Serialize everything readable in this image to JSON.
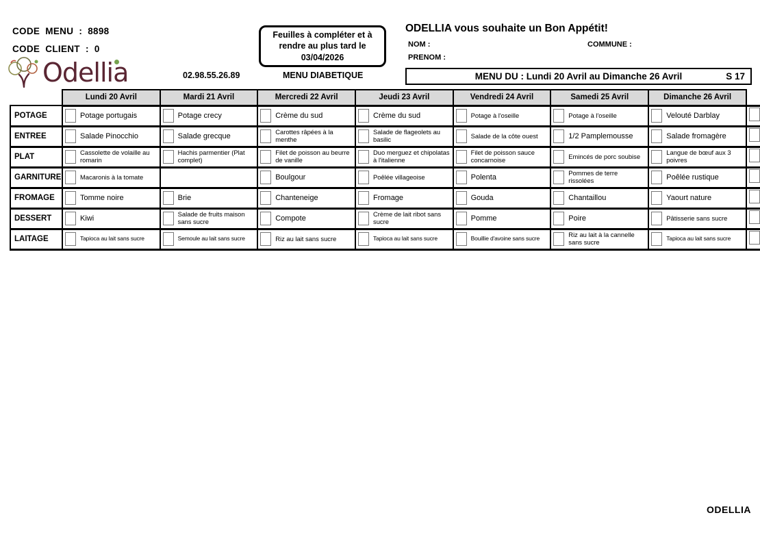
{
  "header": {
    "code_menu": "CODE  MENU  :  8898",
    "code_client": "CODE  CLIENT  :  0",
    "logo_text": "Odellia",
    "phone": "02.98.55.26.89",
    "menu_type": "MENU DIABETIQUE",
    "notice": [
      "Feuilles à compléter et à",
      "rendre au plus tard le",
      "03/04/2026"
    ],
    "greeting": "ODELLIA vous souhaite un Bon Appétit!",
    "nom_label": "NOM :",
    "commune_label": "COMMUNE :",
    "prenom_label": "PRENOM :",
    "week_banner": "MENU DU : Lundi 20 Avril au Dimanche 26 Avril",
    "week_number": "S 17"
  },
  "table": {
    "day_headers": [
      "Lundi 20 Avril",
      "Mardi 21 Avril",
      "Mercredi 22 Avril",
      "Jeudi 23 Avril",
      "Vendredi 24 Avril",
      "Samedi 25 Avril",
      "Dimanche 26 Avril"
    ],
    "rows": [
      {
        "category": "POTAGE",
        "items": [
          "Potage portugais",
          "Potage crecy",
          "Crème du sud",
          "Crème du sud",
          "Potage à l'oseille",
          "Potage à l'oseille",
          "Velouté Darblay"
        ]
      },
      {
        "category": "ENTREE",
        "items": [
          "Salade Pinocchio",
          "Salade grecque",
          "Carottes râpées à la\nmenthe",
          "Salade de flageolets au\nbasilic",
          "Salade de la côte ouest",
          "1/2 Pamplemousse",
          "Salade fromagère"
        ]
      },
      {
        "category": "PLAT",
        "items": [
          "Cassolette de volaille au\nromarin",
          "Hachis parmentier (Plat\ncomplet)",
          "Filet de poisson au beurre\nde vanille",
          "Duo merguez et chipolatas\nà l'italienne",
          "Filet de poisson sauce\nconcarnoise",
          "Emincés de porc soubise",
          "Langue de bœuf aux 3\npoivres"
        ]
      },
      {
        "category": "GARNITURE",
        "items": [
          "Macaronis à la tomate",
          null,
          "Boulgour",
          "Poêlée villageoise",
          "Polenta",
          "Pommes de terre\nrissolées",
          "Poêlée rustique"
        ]
      },
      {
        "category": "FROMAGE",
        "items": [
          "Tomme noire",
          "Brie",
          "Chanteneige",
          "Fromage",
          "Gouda",
          "Chantaillou",
          "Yaourt nature"
        ]
      },
      {
        "category": "DESSERT",
        "items": [
          "Kiwi",
          "Salade de fruits maison\nsans sucre",
          "Compote",
          "Crème de lait ribot sans\nsucre",
          "Pomme",
          "Poire",
          "Pâtisserie sans sucre"
        ]
      },
      {
        "category": "LAITAGE",
        "items": [
          "Tapioca au lait sans sucre",
          "Semoule au lait sans sucre",
          "Riz au lait sans sucre",
          "Tapioca au lait sans sucre",
          "Bouillie d'avoine sans sucre",
          "Riz au lait à la cannelle\nsans sucre",
          "Tapioca au lait sans sucre"
        ]
      }
    ]
  },
  "footer": {
    "brand": "ODELLIA"
  },
  "colors": {
    "logo": "#5a2633",
    "logo_dot": "#76a34e",
    "header_bg": "#d9d9d9",
    "border": "#000000"
  }
}
